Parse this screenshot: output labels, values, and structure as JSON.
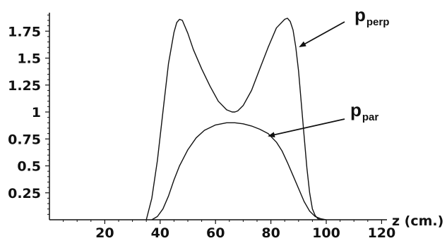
{
  "chart_data": {
    "type": "line",
    "title": "",
    "xlabel": "z (cm.)",
    "ylabel": "",
    "xlim": [
      0,
      125
    ],
    "ylim": [
      0,
      1.95
    ],
    "x_ticks": [
      20,
      40,
      60,
      80,
      100,
      120
    ],
    "x_tick_labels": [
      "20",
      "40",
      "60",
      "80",
      "100",
      "120"
    ],
    "y_ticks": [
      0.25,
      0.5,
      0.75,
      1,
      1.25,
      1.5,
      1.75
    ],
    "y_tick_labels": [
      "0.25",
      "0.5",
      "0.75",
      "1",
      "1.25",
      "1.5",
      "1.75"
    ],
    "grid": false,
    "series": [
      {
        "name": "p_perp",
        "x": [
          35,
          37,
          39,
          41,
          43,
          45,
          46,
          47,
          48,
          50,
          52,
          55,
          58,
          61,
          64,
          66,
          67,
          68,
          70,
          73,
          76,
          79,
          82,
          85,
          86,
          87,
          88,
          89,
          90,
          91,
          92,
          93,
          94,
          95,
          96,
          97,
          98,
          99
        ],
        "y": [
          0.0,
          0.2,
          0.55,
          1.0,
          1.45,
          1.74,
          1.83,
          1.86,
          1.85,
          1.73,
          1.58,
          1.4,
          1.24,
          1.1,
          1.02,
          1.0,
          1.0,
          1.01,
          1.06,
          1.2,
          1.4,
          1.6,
          1.78,
          1.86,
          1.87,
          1.84,
          1.76,
          1.6,
          1.38,
          1.08,
          0.78,
          0.48,
          0.25,
          0.1,
          0.04,
          0.01,
          0.0,
          0.0
        ]
      },
      {
        "name": "p_par",
        "x": [
          37,
          39,
          41,
          43,
          45,
          47,
          50,
          53,
          56,
          60,
          64,
          67,
          70,
          73,
          76,
          79,
          82,
          84,
          86,
          88,
          90,
          92,
          94,
          96,
          98,
          100
        ],
        "y": [
          0.0,
          0.03,
          0.1,
          0.22,
          0.37,
          0.5,
          0.65,
          0.76,
          0.83,
          0.88,
          0.9,
          0.9,
          0.89,
          0.87,
          0.84,
          0.8,
          0.72,
          0.64,
          0.53,
          0.41,
          0.29,
          0.17,
          0.08,
          0.03,
          0.01,
          0.0
        ]
      }
    ],
    "annotations": [
      {
        "main": "p",
        "sub": "perp"
      },
      {
        "main": "p",
        "sub": "par"
      }
    ]
  }
}
